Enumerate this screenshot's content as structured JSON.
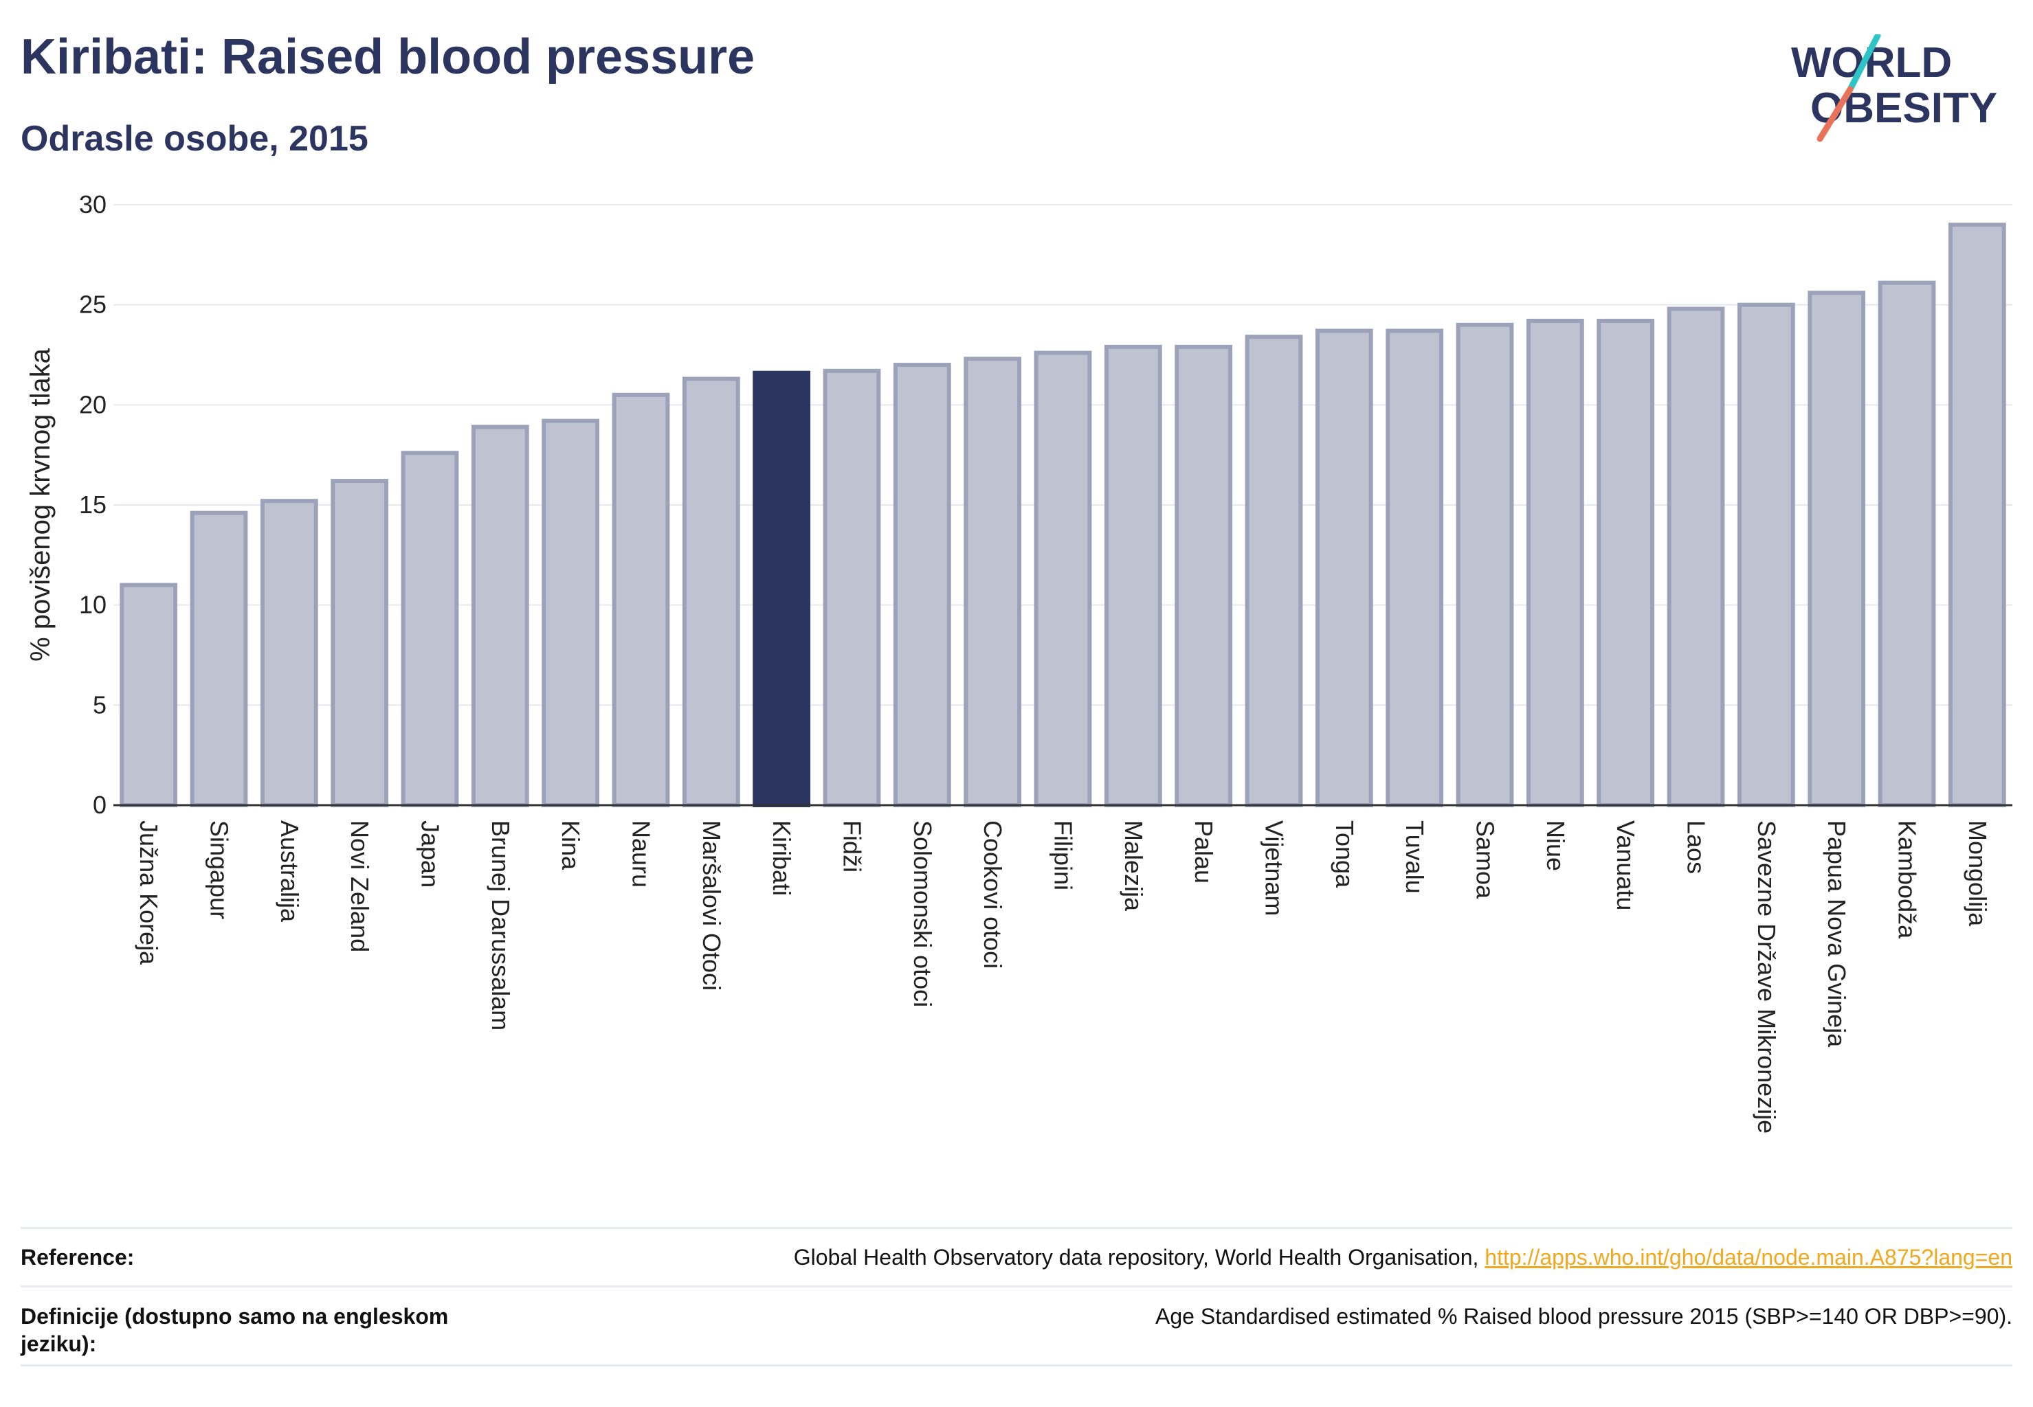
{
  "title": "Kiribati: Raised blood pressure",
  "subtitle": "Odrasle osobe, 2015",
  "logo": {
    "line1": "WORLD",
    "line2": "OBESITY",
    "slash_colors": [
      "#2ec4c6",
      "#e8735a"
    ]
  },
  "colors": {
    "bar": "#bfc3d1",
    "bar_border": "#9ca2ba",
    "highlight": "#2b3560",
    "grid": "#e6e8ee",
    "axis": "#333333",
    "text": "#2b3560"
  },
  "chart_data": {
    "type": "bar",
    "ylabel": "% povišenog krvnog tlaka",
    "ylim": [
      0,
      30
    ],
    "yticks": [
      0,
      5,
      10,
      15,
      20,
      25,
      30
    ],
    "highlight": "Kiribati",
    "grid": true,
    "categories": [
      "Južna Koreja",
      "Singapur",
      "Australija",
      "Novi Zeland",
      "Japan",
      "Brunej Darussalam",
      "Kina",
      "Nauru",
      "Maršalovi Otoci",
      "Kiribati",
      "Fidži",
      "Solomonski otoci",
      "Cookovi otoci",
      "Filipini",
      "Malezija",
      "Palau",
      "Vijetnam",
      "Tonga",
      "Tuvalu",
      "Samoa",
      "Niue",
      "Vanuatu",
      "Laos",
      "Savezne Države Mikronezije",
      "Papua Nova Gvineja",
      "Kambodža",
      "Mongolija"
    ],
    "values": [
      11.0,
      14.6,
      15.2,
      16.2,
      17.6,
      18.9,
      19.2,
      20.5,
      21.3,
      21.6,
      21.7,
      22.0,
      22.3,
      22.6,
      22.9,
      22.9,
      23.4,
      23.7,
      23.7,
      24.0,
      24.2,
      24.2,
      24.8,
      25.0,
      25.6,
      26.1,
      29.0
    ]
  },
  "footer": {
    "reference_label": "Reference:",
    "reference_text": "Global Health Observatory data repository, World Health Organisation, ",
    "reference_link": "http://apps.who.int/gho/data/node.main.A875?lang=en",
    "definition_label": "Definicije (dostupno samo na engleskom jeziku):",
    "definition_text": "Age Standardised estimated % Raised blood pressure 2015 (SBP>=140 OR DBP>=90)."
  }
}
